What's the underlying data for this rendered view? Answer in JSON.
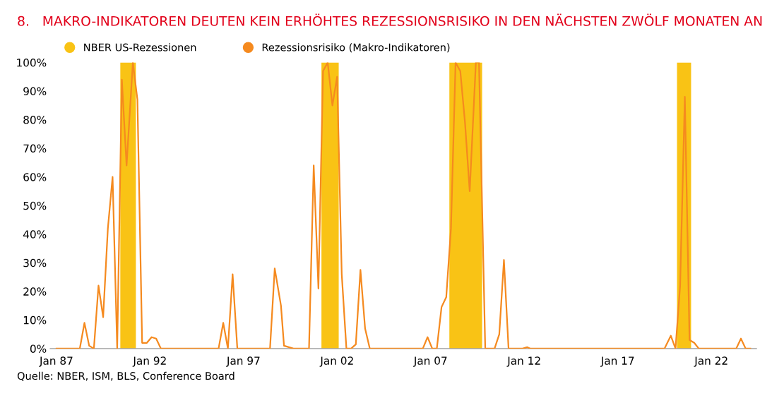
{
  "chart_data": {
    "type": "line",
    "title": "8.   MAKRO-INDIKATOREN DEUTEN KEIN ERHÖHTES REZESSIONSRISIKO IN DEN NÄCHSTEN ZWÖLF MONATEN AN",
    "annotations": [
      "Quelle: NBER, ISM, BLS, Conference Board"
    ],
    "series": [
      {
        "name": "Rezessionsrisiko (Makro-Indikatoren)",
        "color": "#f58a1f",
        "x": [
          "1987-01",
          "1988-04",
          "1988-07",
          "1988-10",
          "1989-01",
          "1989-04",
          "1989-07",
          "1989-10",
          "1990-01",
          "1990-04",
          "1990-07",
          "1990-10",
          "1991-02",
          "1991-05",
          "1991-08",
          "1991-11",
          "1992-02",
          "1992-05",
          "1992-08",
          "1995-09",
          "1995-12",
          "1996-03",
          "1996-06",
          "1996-09",
          "1998-06",
          "1998-09",
          "1999-01",
          "1999-03",
          "1999-09",
          "2000-07",
          "2000-10",
          "2001-01",
          "2001-04",
          "2001-07",
          "2001-10",
          "2002-01",
          "2002-04",
          "2002-07",
          "2002-10",
          "2003-01",
          "2003-04",
          "2003-07",
          "2003-10",
          "2006-08",
          "2006-11",
          "2007-02",
          "2007-05",
          "2007-08",
          "2007-11",
          "2008-02",
          "2008-05",
          "2008-08",
          "2008-11",
          "2009-02",
          "2009-06",
          "2009-08",
          "2009-12",
          "2010-06",
          "2010-09",
          "2010-12",
          "2011-03",
          "2011-12",
          "2012-03",
          "2012-05",
          "2019-07",
          "2019-11",
          "2020-02",
          "2020-05",
          "2020-08",
          "2020-11",
          "2021-02",
          "2021-05",
          "2023-05",
          "2023-08",
          "2023-11",
          "2024-02"
        ],
        "values": [
          0,
          0,
          9,
          1,
          0,
          22,
          11,
          42,
          60,
          0,
          94,
          64,
          100,
          87,
          2,
          2,
          4,
          3.5,
          0,
          0,
          9,
          0,
          26,
          0,
          0,
          28,
          15,
          1,
          0,
          0,
          64,
          21,
          97,
          100,
          85,
          95,
          26,
          0,
          0,
          1.5,
          27.5,
          7,
          0,
          0,
          4,
          0,
          0,
          14.5,
          18,
          42,
          100,
          97,
          79,
          55,
          100,
          100,
          0,
          0,
          5,
          31,
          0,
          0,
          0.5,
          0,
          0,
          4.5,
          0,
          22,
          88,
          3,
          2,
          0,
          0,
          3.5,
          0,
          0
        ]
      }
    ],
    "bands": [
      {
        "axis": "x",
        "from": "1990-06",
        "to": "1991-04",
        "label": "NBER US-Rezessionen",
        "color": "#f9c315"
      },
      {
        "axis": "x",
        "from": "2001-03",
        "to": "2002-02",
        "color": "#f9c315"
      },
      {
        "axis": "x",
        "from": "2008-01",
        "to": "2009-10",
        "color": "#f9c315"
      },
      {
        "axis": "x",
        "from": "2020-03",
        "to": "2020-12",
        "color": "#f9c315"
      }
    ],
    "xlim": [
      "1986-09",
      "2024-06"
    ],
    "xticks": [
      {
        "value": "1987-01",
        "label": "Jan 87"
      },
      {
        "value": "1992-01",
        "label": "Jan 92"
      },
      {
        "value": "1997-01",
        "label": "Jan 97"
      },
      {
        "value": "2002-01",
        "label": "Jan 02"
      },
      {
        "value": "2007-01",
        "label": "Jan 07"
      },
      {
        "value": "2012-01",
        "label": "Jan 12"
      },
      {
        "value": "2017-01",
        "label": "Jan 17"
      },
      {
        "value": "2022-01",
        "label": "Jan 22"
      }
    ],
    "ylim": [
      0,
      100
    ],
    "yticks": [
      {
        "value": 0,
        "label": "0%"
      },
      {
        "value": 10,
        "label": "10%"
      },
      {
        "value": 20,
        "label": "20%"
      },
      {
        "value": 30,
        "label": "30%"
      },
      {
        "value": 40,
        "label": "40%"
      },
      {
        "value": 50,
        "label": "50%"
      },
      {
        "value": 60,
        "label": "60%"
      },
      {
        "value": 70,
        "label": "70%"
      },
      {
        "value": 80,
        "label": "80%"
      },
      {
        "value": 90,
        "label": "90%"
      },
      {
        "value": 100,
        "label": "100%"
      }
    ],
    "grid": false,
    "legend": "top left",
    "marker": "none",
    "line_style": "solid"
  }
}
